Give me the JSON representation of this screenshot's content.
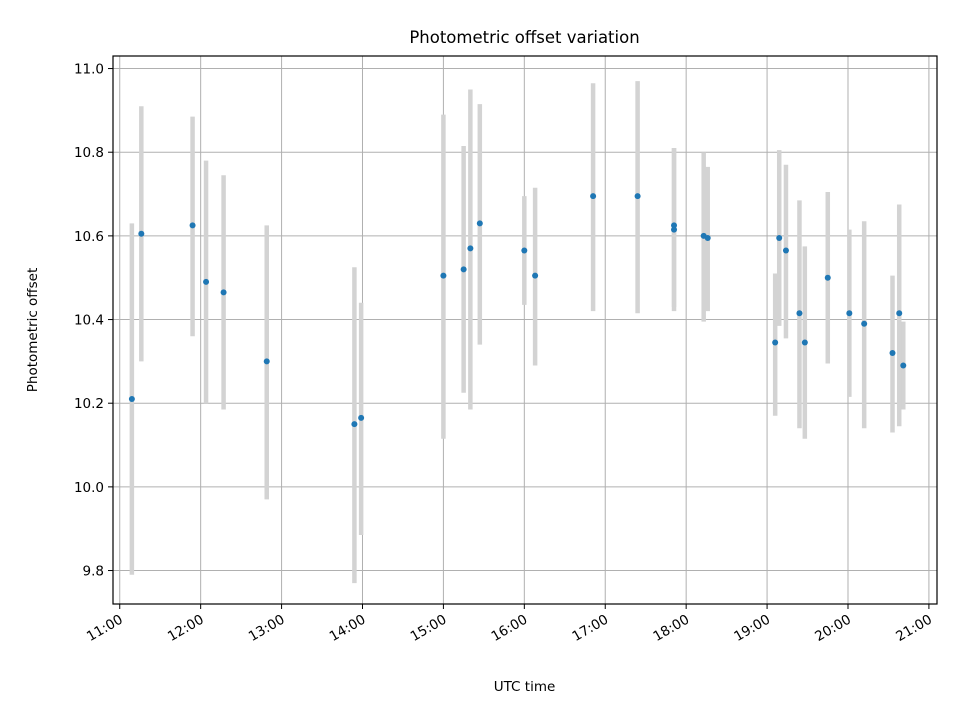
{
  "chart_data": {
    "type": "scatter",
    "title": "Photometric offset variation",
    "xlabel": "UTC time",
    "ylabel": "Photometric offset",
    "xlim": [
      "10:55",
      "21:06"
    ],
    "ylim": [
      9.72,
      11.03
    ],
    "grid": true,
    "point_color": "#1f77b4",
    "errorbar_color": "#d3d3d3",
    "x_ticks": [
      "11:00",
      "12:00",
      "13:00",
      "14:00",
      "15:00",
      "16:00",
      "17:00",
      "18:00",
      "19:00",
      "20:00",
      "21:00"
    ],
    "y_ticks": [
      "9.8",
      "10.0",
      "10.2",
      "10.4",
      "10.6",
      "10.8",
      "11.0"
    ],
    "points": [
      {
        "time": "11:09",
        "value": 10.21,
        "low": 9.79,
        "high": 10.63
      },
      {
        "time": "11:16",
        "value": 10.605,
        "low": 10.3,
        "high": 10.91
      },
      {
        "time": "11:54",
        "value": 10.625,
        "low": 10.36,
        "high": 10.885
      },
      {
        "time": "12:04",
        "value": 10.49,
        "low": 10.2,
        "high": 10.78
      },
      {
        "time": "12:17",
        "value": 10.465,
        "low": 10.185,
        "high": 10.745
      },
      {
        "time": "12:49",
        "value": 10.3,
        "low": 9.97,
        "high": 10.625
      },
      {
        "time": "13:54",
        "value": 10.15,
        "low": 9.77,
        "high": 10.525
      },
      {
        "time": "13:59",
        "value": 10.165,
        "low": 9.885,
        "high": 10.44
      },
      {
        "time": "15:00",
        "value": 10.505,
        "low": 10.115,
        "high": 10.89
      },
      {
        "time": "15:15",
        "value": 10.52,
        "low": 10.225,
        "high": 10.815
      },
      {
        "time": "15:20",
        "value": 10.57,
        "low": 10.185,
        "high": 10.95
      },
      {
        "time": "15:27",
        "value": 10.63,
        "low": 10.34,
        "high": 10.915
      },
      {
        "time": "16:00",
        "value": 10.565,
        "low": 10.435,
        "high": 10.695
      },
      {
        "time": "16:08",
        "value": 10.505,
        "low": 10.29,
        "high": 10.715
      },
      {
        "time": "16:51",
        "value": 10.695,
        "low": 10.42,
        "high": 10.965
      },
      {
        "time": "17:24",
        "value": 10.695,
        "low": 10.415,
        "high": 10.97
      },
      {
        "time": "17:51",
        "value": 10.615,
        "low": 10.42,
        "high": 10.81
      },
      {
        "time": "17:51",
        "value": 10.625,
        "low": 10.43,
        "high": 10.81
      },
      {
        "time": "18:13",
        "value": 10.6,
        "low": 10.395,
        "high": 10.8
      },
      {
        "time": "18:16",
        "value": 10.595,
        "low": 10.42,
        "high": 10.765
      },
      {
        "time": "19:06",
        "value": 10.345,
        "low": 10.17,
        "high": 10.51
      },
      {
        "time": "19:09",
        "value": 10.595,
        "low": 10.385,
        "high": 10.805
      },
      {
        "time": "19:14",
        "value": 10.565,
        "low": 10.355,
        "high": 10.77
      },
      {
        "time": "19:24",
        "value": 10.415,
        "low": 10.14,
        "high": 10.685
      },
      {
        "time": "19:28",
        "value": 10.345,
        "low": 10.115,
        "high": 10.575
      },
      {
        "time": "19:45",
        "value": 10.5,
        "low": 10.295,
        "high": 10.705
      },
      {
        "time": "20:01",
        "value": 10.415,
        "low": 10.215,
        "high": 10.615
      },
      {
        "time": "20:12",
        "value": 10.39,
        "low": 10.14,
        "high": 10.635
      },
      {
        "time": "20:33",
        "value": 10.32,
        "low": 10.13,
        "high": 10.505
      },
      {
        "time": "20:38",
        "value": 10.415,
        "low": 10.145,
        "high": 10.675
      },
      {
        "time": "20:41",
        "value": 10.29,
        "low": 10.185,
        "high": 10.395
      }
    ]
  }
}
